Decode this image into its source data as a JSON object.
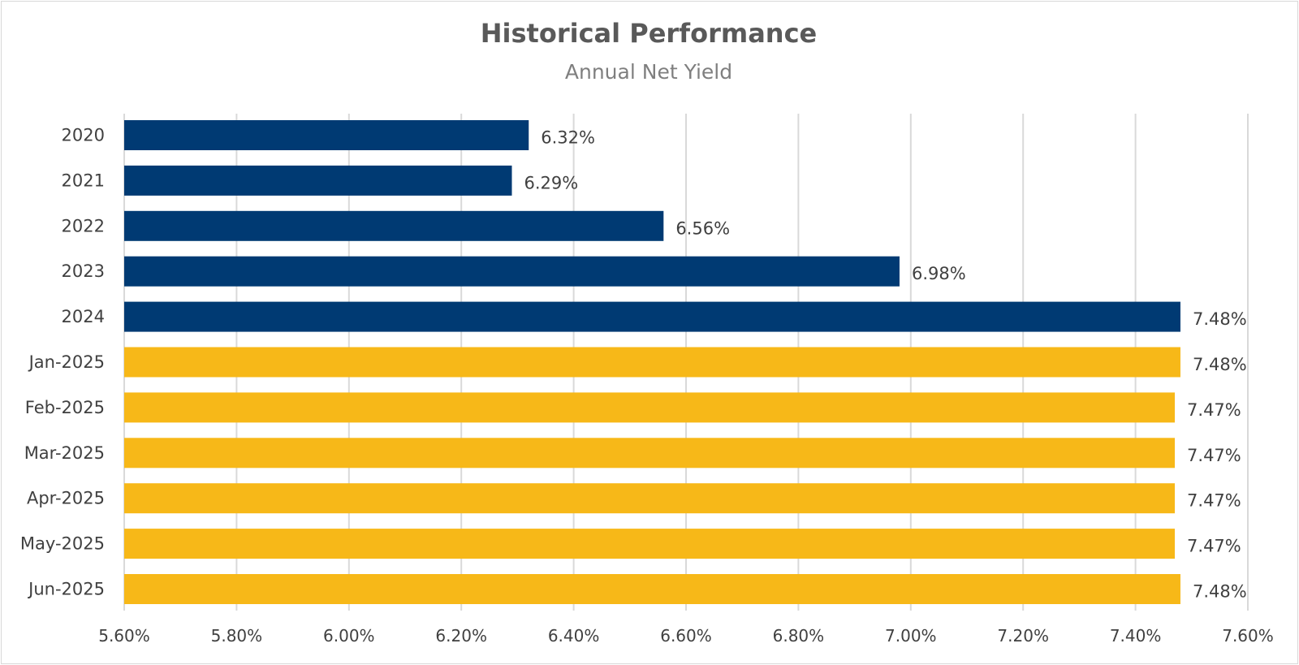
{
  "chart_data": {
    "type": "bar",
    "orientation": "horizontal",
    "title": "Historical Performance",
    "subtitle": "Annual Net Yield",
    "xlabel": "",
    "ylabel": "",
    "xlim": [
      5.6,
      7.6
    ],
    "ticks": [
      5.6,
      5.8,
      6.0,
      6.2,
      6.4,
      6.6,
      6.8,
      7.0,
      7.2,
      7.4,
      7.6
    ],
    "tick_labels": [
      "5.60%",
      "5.80%",
      "6.00%",
      "6.20%",
      "6.40%",
      "6.60%",
      "6.80%",
      "7.00%",
      "7.20%",
      "7.40%",
      "7.60%"
    ],
    "grid": true,
    "legend": "none",
    "categories": [
      "2020",
      "2021",
      "2022",
      "2023",
      "2024",
      "Jan-2025",
      "Feb-2025",
      "Mar-2025",
      "Apr-2025",
      "May-2025",
      "Jun-2025"
    ],
    "values": [
      6.32,
      6.29,
      6.56,
      6.98,
      7.48,
      7.48,
      7.47,
      7.47,
      7.47,
      7.47,
      7.48
    ],
    "value_labels": [
      "6.32%",
      "6.29%",
      "6.56%",
      "6.98%",
      "7.48%",
      "7.48%",
      "7.47%",
      "7.47%",
      "7.47%",
      "7.47%",
      "7.48%"
    ],
    "bar_colors": [
      "#003a73",
      "#003a73",
      "#003a73",
      "#003a73",
      "#003a73",
      "#f7b818",
      "#f7b818",
      "#f7b818",
      "#f7b818",
      "#f7b818",
      "#f7b818"
    ],
    "colors": {
      "annual": "#003a73",
      "monthly": "#f7b818",
      "gridline": "#d9d9d9"
    }
  }
}
